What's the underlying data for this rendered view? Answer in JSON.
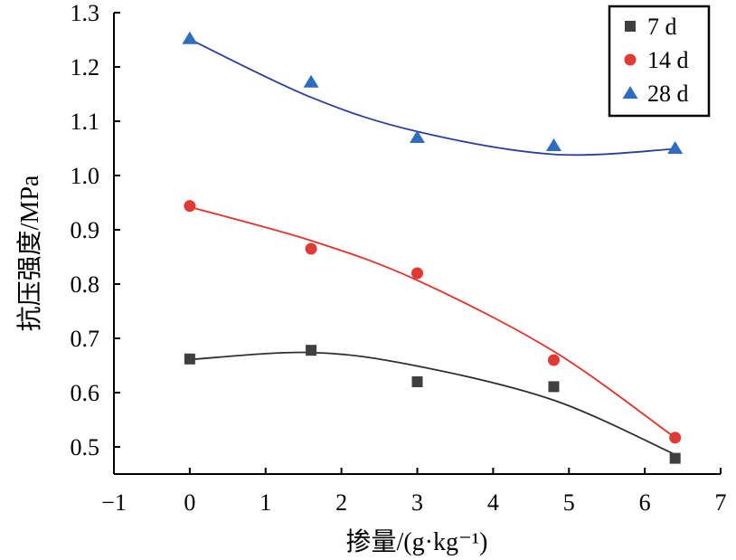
{
  "chart_data": {
    "type": "scatter",
    "title": "",
    "xlabel": "掺量/(g·kg⁻¹)",
    "ylabel": "抗压强度/MPa",
    "xlim": [
      -1,
      7
    ],
    "ylim": [
      0.45,
      1.3
    ],
    "x_ticks": [
      -1,
      0,
      1,
      2,
      3,
      4,
      5,
      6,
      7
    ],
    "x_tick_labels": [
      "−1",
      "0",
      "1",
      "2",
      "3",
      "4",
      "5",
      "6",
      "7"
    ],
    "y_ticks": [
      0.5,
      0.6,
      0.7,
      0.8,
      0.9,
      1.0,
      1.1,
      1.2,
      1.3
    ],
    "y_tick_labels": [
      "0.5",
      "0.6",
      "0.7",
      "0.8",
      "0.9",
      "1.0",
      "1.1",
      "1.2",
      "1.3"
    ],
    "grid": false,
    "legend_position": "top-right",
    "x": [
      0,
      1.6,
      3,
      4.8,
      6.4
    ],
    "series": [
      {
        "name": "7 d",
        "marker": "square",
        "color": "#3f3f3f",
        "line_color": "#303030",
        "values": [
          0.662,
          0.678,
          0.62,
          0.611,
          0.479
        ],
        "fit": [
          0.661,
          0.674,
          0.649,
          0.586,
          0.486
        ]
      },
      {
        "name": "14 d",
        "marker": "circle",
        "color": "#e03a35",
        "line_color": "#e2302b",
        "values": [
          0.944,
          0.865,
          0.82,
          0.66,
          0.517
        ],
        "fit": [
          0.942,
          0.88,
          0.807,
          0.676,
          0.517
        ]
      },
      {
        "name": "28 d",
        "marker": "triangle",
        "color": "#2f6cc0",
        "line_color": "#2c3e9c",
        "values": [
          1.252,
          1.172,
          1.07,
          1.055,
          1.05
        ],
        "fit": [
          1.251,
          1.144,
          1.081,
          1.039,
          1.049
        ]
      }
    ]
  }
}
